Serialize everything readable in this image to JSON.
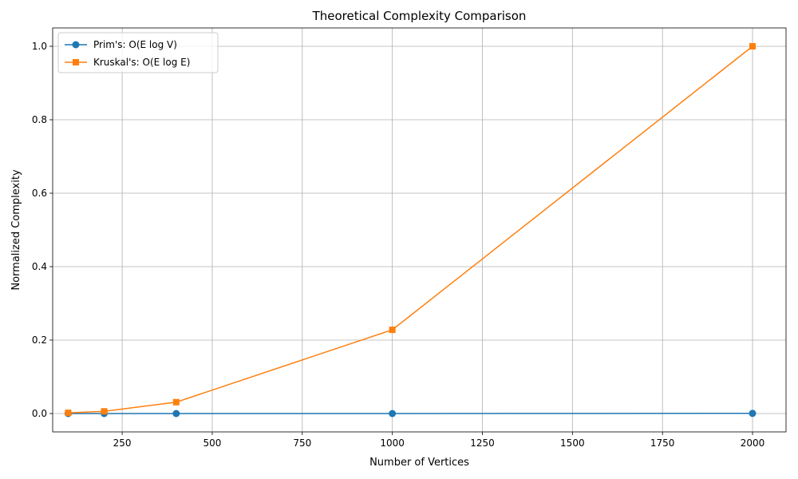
{
  "chart_data": {
    "type": "line",
    "title": "Theoretical Complexity Comparison",
    "xlabel": "Number of Vertices",
    "ylabel": "Normalized Complexity",
    "xlim": [
      57,
      2093
    ],
    "ylim": [
      -0.05,
      1.05
    ],
    "xticks": [
      250,
      500,
      750,
      1000,
      1250,
      1500,
      1750,
      2000
    ],
    "xtick_labels": [
      "250",
      "500",
      "750",
      "1000",
      "1250",
      "1500",
      "1750",
      "2000"
    ],
    "yticks": [
      0.0,
      0.2,
      0.4,
      0.6,
      0.8,
      1.0
    ],
    "ytick_labels": [
      "0.0",
      "0.2",
      "0.4",
      "0.6",
      "0.8",
      "1.0"
    ],
    "grid": true,
    "legend_position": "top-left",
    "x": [
      100,
      200,
      400,
      1000,
      2000
    ],
    "series": [
      {
        "name": "Prim's: O(E log V)",
        "values": [
          0.0,
          0.0,
          0.0,
          0.0,
          0.0005
        ],
        "color": "#1f77b4",
        "marker": "circle"
      },
      {
        "name": "Kruskal's: O(E log E)",
        "values": [
          0.002,
          0.006,
          0.031,
          0.228,
          1.0
        ],
        "color": "#ff7f0e",
        "marker": "square"
      }
    ]
  }
}
